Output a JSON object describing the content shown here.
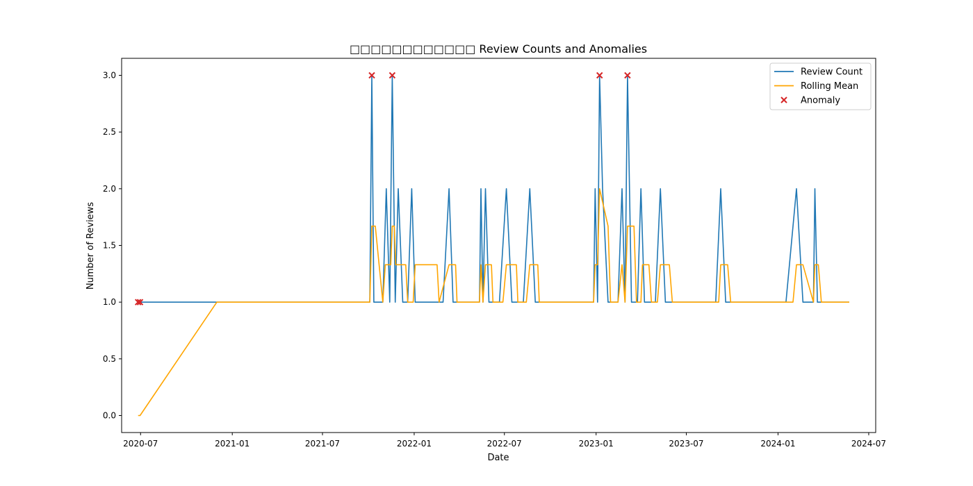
{
  "chart_data": {
    "type": "line",
    "title": "□□□□□□□□□□□□ Review Counts and Anomalies",
    "xlabel": "Date",
    "ylabel": "Number of Reviews",
    "xlim": [
      "2020-05-24",
      "2024-07-15"
    ],
    "ylim": [
      -0.15,
      3.15
    ],
    "x_ticks": [
      {
        "date": "2020-07-01",
        "label": "2020-07"
      },
      {
        "date": "2021-01-01",
        "label": "2021-01"
      },
      {
        "date": "2021-07-01",
        "label": "2021-07"
      },
      {
        "date": "2022-01-01",
        "label": "2022-01"
      },
      {
        "date": "2022-07-01",
        "label": "2022-07"
      },
      {
        "date": "2023-01-01",
        "label": "2023-01"
      },
      {
        "date": "2023-07-01",
        "label": "2023-07"
      },
      {
        "date": "2024-01-01",
        "label": "2024-01"
      },
      {
        "date": "2024-07-01",
        "label": "2024-07"
      }
    ],
    "y_ticks": [
      {
        "value": 0.0,
        "label": "0.0"
      },
      {
        "value": 0.5,
        "label": "0.5"
      },
      {
        "value": 1.0,
        "label": "1.0"
      },
      {
        "value": 1.5,
        "label": "1.5"
      },
      {
        "value": 2.0,
        "label": "2.0"
      },
      {
        "value": 2.5,
        "label": "2.5"
      },
      {
        "value": 3.0,
        "label": "3.0"
      }
    ],
    "grid": false,
    "legend_position": "top-right",
    "series": [
      {
        "name": "Review Count",
        "kind": "line",
        "color": "#1f77b4",
        "points": [
          [
            "2020-06-26",
            1
          ],
          [
            "2020-06-30",
            1
          ],
          [
            "2020-12-01",
            1
          ],
          [
            "2021-10-04",
            1
          ],
          [
            "2021-10-08",
            3
          ],
          [
            "2021-10-12",
            1
          ],
          [
            "2021-10-30",
            1
          ],
          [
            "2021-11-06",
            2
          ],
          [
            "2021-11-13",
            1
          ],
          [
            "2021-11-18",
            3
          ],
          [
            "2021-11-24",
            1
          ],
          [
            "2021-11-30",
            2
          ],
          [
            "2021-12-09",
            1
          ],
          [
            "2021-12-19",
            1
          ],
          [
            "2021-12-27",
            2
          ],
          [
            "2022-01-03",
            1
          ],
          [
            "2022-01-10",
            1
          ],
          [
            "2022-01-30",
            1
          ],
          [
            "2022-02-08",
            1
          ],
          [
            "2022-02-14",
            1
          ],
          [
            "2022-02-28",
            1
          ],
          [
            "2022-03-12",
            2
          ],
          [
            "2022-03-20",
            1
          ],
          [
            "2022-04-10",
            1
          ],
          [
            "2022-05-12",
            1
          ],
          [
            "2022-05-15",
            2
          ],
          [
            "2022-05-19",
            1
          ],
          [
            "2022-05-24",
            2
          ],
          [
            "2022-05-31",
            1
          ],
          [
            "2022-06-21",
            1
          ],
          [
            "2022-07-05",
            2
          ],
          [
            "2022-07-16",
            1
          ],
          [
            "2022-08-08",
            1
          ],
          [
            "2022-08-21",
            2
          ],
          [
            "2022-09-01",
            1
          ],
          [
            "2022-09-20",
            1
          ],
          [
            "2022-12-27",
            1
          ],
          [
            "2022-12-30",
            2
          ],
          [
            "2023-01-04",
            1
          ],
          [
            "2023-01-08",
            3
          ],
          [
            "2023-01-14",
            2
          ],
          [
            "2023-01-25",
            1
          ],
          [
            "2023-02-14",
            1
          ],
          [
            "2023-02-22",
            2
          ],
          [
            "2023-02-28",
            1
          ],
          [
            "2023-03-05",
            3
          ],
          [
            "2023-03-13",
            1
          ],
          [
            "2023-03-25",
            1
          ],
          [
            "2023-04-01",
            2
          ],
          [
            "2023-04-08",
            1
          ],
          [
            "2023-04-30",
            1
          ],
          [
            "2023-05-10",
            2
          ],
          [
            "2023-05-20",
            1
          ],
          [
            "2023-06-10",
            1
          ],
          [
            "2023-08-29",
            1
          ],
          [
            "2023-09-08",
            2
          ],
          [
            "2023-09-18",
            1
          ],
          [
            "2023-10-30",
            1
          ],
          [
            "2024-01-17",
            1
          ],
          [
            "2024-02-07",
            2
          ],
          [
            "2024-02-20",
            1
          ],
          [
            "2024-03-12",
            1
          ],
          [
            "2024-03-15",
            2
          ],
          [
            "2024-03-20",
            1
          ],
          [
            "2024-05-23",
            1
          ]
        ]
      },
      {
        "name": "Rolling Mean",
        "kind": "line",
        "color": "#ffa500",
        "points": [
          [
            "2020-06-26",
            0
          ],
          [
            "2020-06-30",
            0
          ],
          [
            "2020-12-01",
            1
          ],
          [
            "2021-10-04",
            1
          ],
          [
            "2021-10-08",
            1.67
          ],
          [
            "2021-10-15",
            1.67
          ],
          [
            "2021-10-30",
            1
          ],
          [
            "2021-11-04",
            1.33
          ],
          [
            "2021-11-15",
            1.33
          ],
          [
            "2021-11-18",
            1.67
          ],
          [
            "2021-11-22",
            1.67
          ],
          [
            "2021-11-25",
            1.33
          ],
          [
            "2021-12-15",
            1.33
          ],
          [
            "2021-12-19",
            1
          ],
          [
            "2021-12-30",
            1
          ],
          [
            "2022-01-03",
            1.33
          ],
          [
            "2022-02-16",
            1.33
          ],
          [
            "2022-02-20",
            1
          ],
          [
            "2022-03-12",
            1.33
          ],
          [
            "2022-03-25",
            1.33
          ],
          [
            "2022-03-28",
            1
          ],
          [
            "2022-05-12",
            1
          ],
          [
            "2022-05-15",
            1.33
          ],
          [
            "2022-05-19",
            1
          ],
          [
            "2022-05-24",
            1.33
          ],
          [
            "2022-06-05",
            1.33
          ],
          [
            "2022-06-08",
            1
          ],
          [
            "2022-06-28",
            1
          ],
          [
            "2022-07-05",
            1.33
          ],
          [
            "2022-07-25",
            1.33
          ],
          [
            "2022-07-28",
            1
          ],
          [
            "2022-08-14",
            1
          ],
          [
            "2022-08-21",
            1.33
          ],
          [
            "2022-09-06",
            1.33
          ],
          [
            "2022-09-09",
            1
          ],
          [
            "2022-12-27",
            1
          ],
          [
            "2022-12-30",
            1.33
          ],
          [
            "2023-01-04",
            1.33
          ],
          [
            "2023-01-08",
            2
          ],
          [
            "2023-01-25",
            1.67
          ],
          [
            "2023-01-30",
            1
          ],
          [
            "2023-02-14",
            1
          ],
          [
            "2023-02-22",
            1.33
          ],
          [
            "2023-02-28",
            1
          ],
          [
            "2023-03-05",
            1.67
          ],
          [
            "2023-03-18",
            1.67
          ],
          [
            "2023-03-23",
            1
          ],
          [
            "2023-04-01",
            1
          ],
          [
            "2023-04-04",
            1.33
          ],
          [
            "2023-04-17",
            1.33
          ],
          [
            "2023-04-22",
            1
          ],
          [
            "2023-05-04",
            1
          ],
          [
            "2023-05-10",
            1.33
          ],
          [
            "2023-05-28",
            1.33
          ],
          [
            "2023-06-03",
            1
          ],
          [
            "2023-09-04",
            1
          ],
          [
            "2023-09-08",
            1.33
          ],
          [
            "2023-09-22",
            1.33
          ],
          [
            "2023-09-28",
            1
          ],
          [
            "2024-01-31",
            1
          ],
          [
            "2024-02-07",
            1.33
          ],
          [
            "2024-02-20",
            1.33
          ],
          [
            "2024-03-12",
            1
          ],
          [
            "2024-03-15",
            1.33
          ],
          [
            "2024-03-22",
            1.33
          ],
          [
            "2024-03-28",
            1
          ],
          [
            "2024-05-23",
            1
          ]
        ]
      },
      {
        "name": "Anomaly",
        "kind": "scatter",
        "marker": "x",
        "color": "#d62728",
        "points": [
          [
            "2020-06-26",
            1
          ],
          [
            "2020-06-30",
            1
          ],
          [
            "2021-10-08",
            3
          ],
          [
            "2021-11-18",
            3
          ],
          [
            "2023-01-08",
            3
          ],
          [
            "2023-03-05",
            3
          ]
        ]
      }
    ]
  }
}
